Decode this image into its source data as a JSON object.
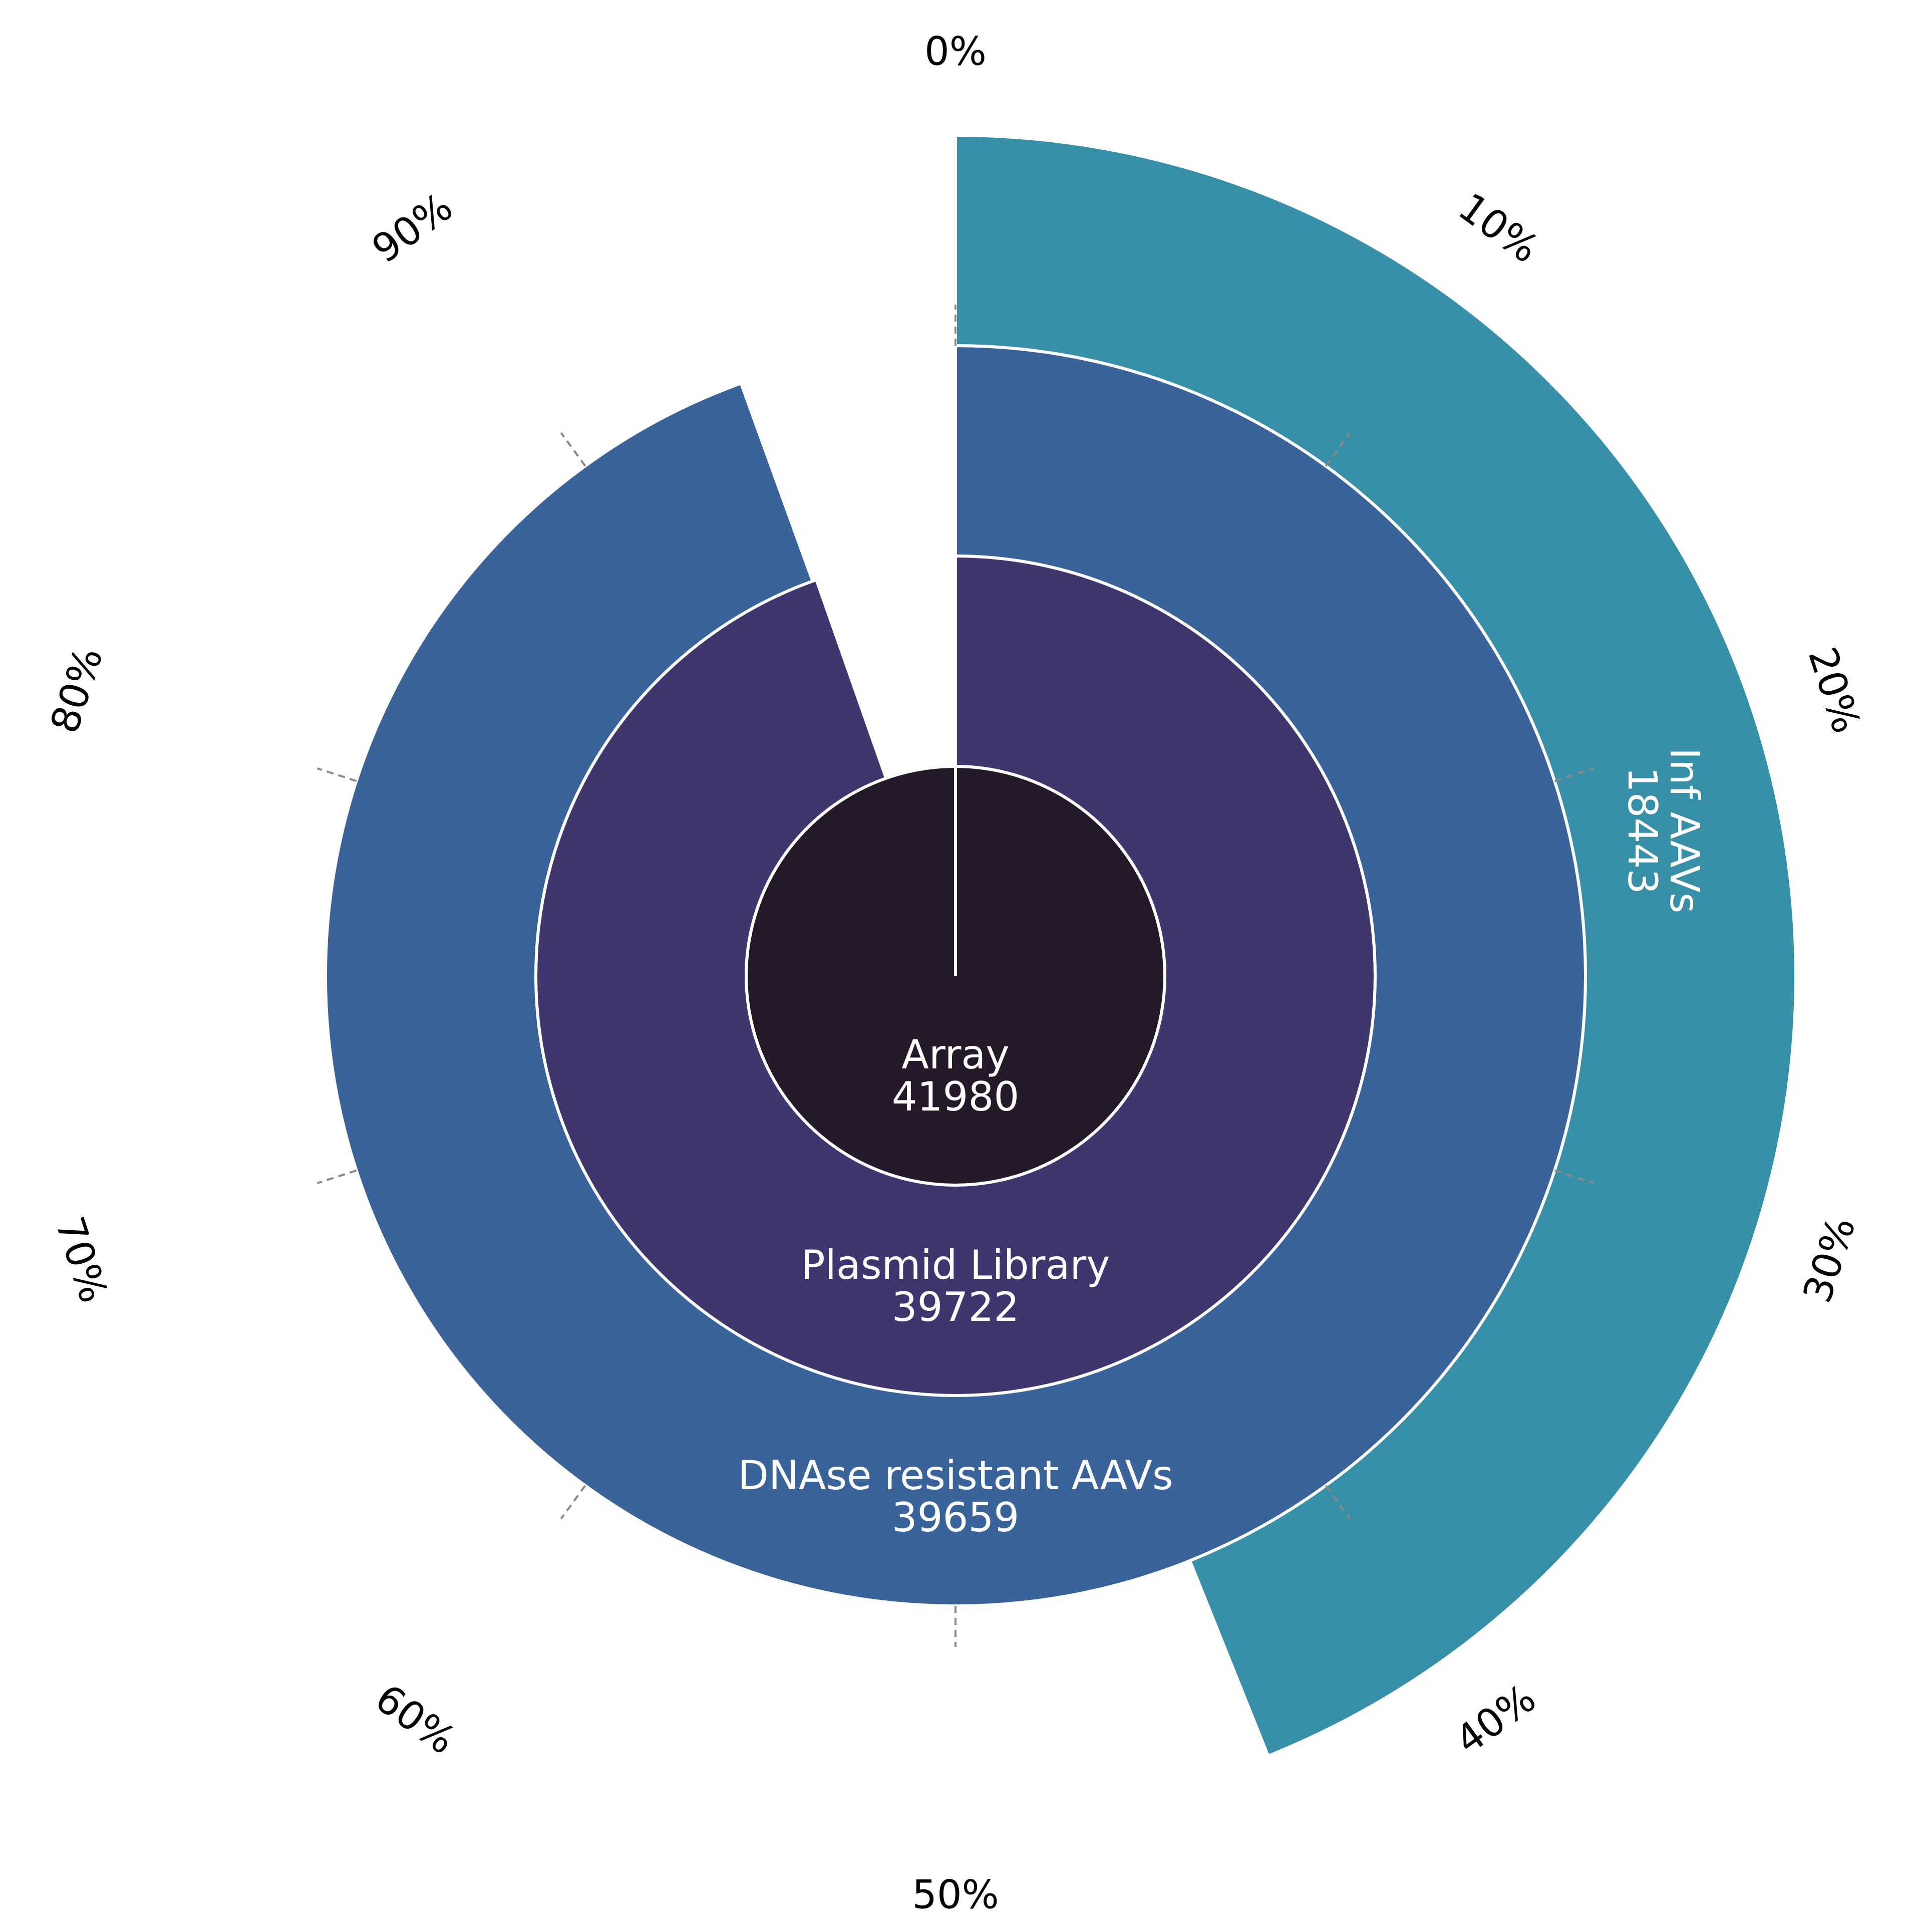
{
  "chart_data": {
    "type": "sunburst",
    "description_units": "fraction of Array count (full circle = 41980)",
    "angular_ticks": [
      "0%",
      "10%",
      "20%",
      "30%",
      "40%",
      "50%",
      "60%",
      "70%",
      "80%",
      "90%"
    ],
    "rings": [
      {
        "name": "Array",
        "value": 41980,
        "label": "Array",
        "value_label": "41980",
        "color": "#251828"
      },
      {
        "name": "Plasmid Library",
        "value": 39722,
        "label": "Plasmid Library",
        "value_label": "39722",
        "color": "#3f366e"
      },
      {
        "name": "DNAse resistant AAVs",
        "value": 39659,
        "label": "DNAse resistant AAVs",
        "value_label": "39659",
        "color": "#3a6399"
      },
      {
        "name": "Inf AAVs",
        "value": 18443,
        "label": "Inf AAVs",
        "value_label": "18443",
        "color": "#3790a8"
      }
    ],
    "total": 41980
  }
}
